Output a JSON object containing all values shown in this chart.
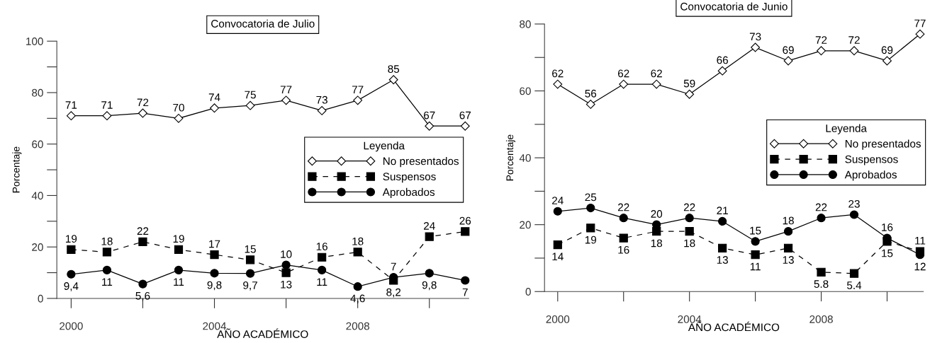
{
  "chart_data": [
    {
      "type": "line",
      "title": "Convocatoria de Julio",
      "xlabel": "AÑO ACADÉMICO",
      "ylabel": "Porcentaje",
      "legend_title": "Leyenda",
      "legend": "center right",
      "x": [
        2000,
        2001,
        2002,
        2003,
        2004,
        2005,
        2006,
        2007,
        2008,
        2009,
        2010,
        2011
      ],
      "xlim": [
        1999.6,
        2011.1
      ],
      "xticks": [
        2000,
        {
          "value": 2002,
          "label": null
        },
        2004,
        {
          "value": 2006,
          "label": null
        },
        2008,
        {
          "value": 2010,
          "label": null
        }
      ],
      "ylim": [
        0,
        100
      ],
      "yticks": [
        0,
        {
          "value": 10,
          "label": null
        },
        20,
        {
          "value": 30,
          "label": null
        },
        40,
        {
          "value": 50,
          "label": null
        },
        60,
        {
          "value": 70,
          "label": null
        },
        80,
        {
          "value": 90,
          "label": null
        },
        100
      ],
      "series": [
        {
          "name": "No presentados",
          "color": "#000000",
          "marker": "diamond",
          "line_style": "solid",
          "values": [
            71,
            71,
            72,
            70,
            74,
            75,
            77,
            73,
            77,
            85,
            67,
            67
          ],
          "value_labels": [
            "71",
            "71",
            "72",
            "70",
            "74",
            "75",
            "77",
            "73",
            "77",
            "85",
            "67",
            "67"
          ]
        },
        {
          "name": "Suspensos",
          "color": "#000000",
          "marker": "square",
          "line_style": "dashed",
          "values": [
            19,
            18,
            22,
            19,
            17,
            15,
            10,
            16,
            18,
            7,
            24,
            26
          ],
          "value_labels": [
            "19",
            "18",
            "22",
            "19",
            "17",
            "15",
            "10",
            "16",
            "18",
            "7",
            "24",
            "26"
          ]
        },
        {
          "name": "Aprobados",
          "color": "#000000",
          "marker": "circle",
          "line_style": "solid",
          "values": [
            9.4,
            11,
            5.6,
            11,
            9.8,
            9.7,
            13,
            11,
            4.6,
            8.2,
            9.8,
            7
          ],
          "value_labels": [
            "9,4",
            "11",
            "5,6",
            "11",
            "9,8",
            "9,7",
            "13",
            "11",
            "4,6",
            "8,2",
            "9,8",
            "7"
          ]
        }
      ]
    },
    {
      "type": "line",
      "title": "Convocatoria de Junio",
      "xlabel": "AÑO ACADÉMICO",
      "ylabel": "Porcentaje",
      "legend_title": "Leyenda",
      "legend": "right",
      "x": [
        2000,
        2001,
        2002,
        2003,
        2004,
        2005,
        2006,
        2007,
        2008,
        2009,
        2010,
        2011
      ],
      "xlim": [
        1999.6,
        2011.1
      ],
      "xticks": [
        2000,
        {
          "value": 2002,
          "label": null
        },
        2004,
        {
          "value": 2006,
          "label": null
        },
        2008,
        {
          "value": 2010,
          "label": null
        }
      ],
      "ylim": [
        0,
        80
      ],
      "yticks": [
        0,
        {
          "value": 10,
          "label": null
        },
        20,
        {
          "value": 30,
          "label": null
        },
        40,
        {
          "value": 50,
          "label": null
        },
        60,
        {
          "value": 70,
          "label": null
        },
        80
      ],
      "series": [
        {
          "name": "No presentados",
          "color": "#000000",
          "marker": "diamond",
          "line_style": "solid",
          "values": [
            62,
            56,
            62,
            62,
            59,
            66,
            73,
            69,
            72,
            72,
            69,
            77
          ],
          "value_labels": [
            "62",
            "56",
            "62",
            "62",
            "59",
            "66",
            "73",
            "69",
            "72",
            "72",
            "69",
            "77"
          ]
        },
        {
          "name": "Suspensos",
          "color": "#000000",
          "marker": "square",
          "line_style": "dashed",
          "values": [
            14,
            19,
            16,
            18,
            18,
            13,
            11,
            13,
            5.8,
            5.4,
            15,
            12
          ],
          "value_labels": [
            "14",
            "19",
            "16",
            "18",
            "18",
            "13",
            "11",
            "13",
            "5.8",
            "5.4",
            "15",
            "12"
          ]
        },
        {
          "name": "Aprobados",
          "color": "#000000",
          "marker": "circle",
          "line_style": "solid",
          "values": [
            24,
            25,
            22,
            20,
            22,
            21,
            15,
            18,
            22,
            23,
            16,
            11
          ],
          "value_labels": [
            "24",
            "25",
            "22",
            "20",
            "22",
            "21",
            "15",
            "18",
            "22",
            "23",
            "16",
            "11"
          ]
        }
      ]
    }
  ]
}
